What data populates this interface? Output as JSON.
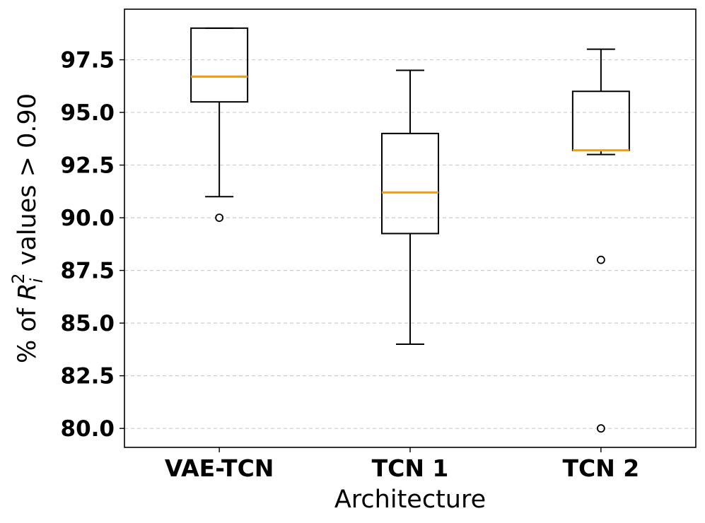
{
  "chart_data": {
    "type": "box",
    "title": "",
    "xlabel": "Architecture",
    "ylabel_parts": {
      "prefix": "% of ",
      "var": "R",
      "sub": "i",
      "sup": "2",
      "suffix": " values > 0.90"
    },
    "ylim": [
      79.1,
      99.9
    ],
    "yticks": [
      "80.0",
      "82.5",
      "85.0",
      "87.5",
      "90.0",
      "92.5",
      "95.0",
      "97.5"
    ],
    "ytick_values": [
      80.0,
      82.5,
      85.0,
      87.5,
      90.0,
      92.5,
      95.0,
      97.5
    ],
    "grid": "y",
    "categories": [
      "VAE-TCN",
      "TCN 1",
      "TCN 2"
    ],
    "boxes": [
      {
        "label": "VAE-TCN",
        "whisker_low": 91.0,
        "q1": 95.5,
        "median": 96.7,
        "q3": 99.0,
        "whisker_high": 99.0,
        "outliers": [
          90.0
        ]
      },
      {
        "label": "TCN 1",
        "whisker_low": 84.0,
        "q1": 89.25,
        "median": 91.2,
        "q3": 94.0,
        "whisker_high": 97.0,
        "outliers": []
      },
      {
        "label": "TCN 2",
        "whisker_low": 93.0,
        "q1": 93.2,
        "median": 93.2,
        "q3": 96.0,
        "whisker_high": 98.0,
        "outliers": [
          88.0,
          80.0
        ]
      }
    ],
    "colors": {
      "median": "#f5a000",
      "box": "#000000",
      "grid": "#cccccc"
    }
  }
}
